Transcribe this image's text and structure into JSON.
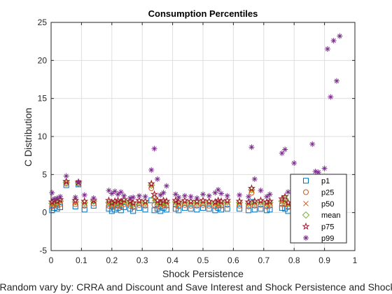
{
  "chart_data": {
    "type": "scatter",
    "title": "Consumption Percentiles",
    "xlabel": "Shock Persistence",
    "ylabel": "C Distribution",
    "caption": "Random vary by: CRRA and Discount and Save Interest and Shock Persistence and Shock",
    "xlim": [
      0,
      1
    ],
    "ylim": [
      -5,
      25
    ],
    "xticks": [
      "0",
      "0.1",
      "0.2",
      "0.3",
      "0.4",
      "0.5",
      "0.6",
      "0.7",
      "0.8",
      "0.9",
      "1"
    ],
    "yticks": [
      "-5",
      "0",
      "5",
      "10",
      "15",
      "20",
      "25"
    ],
    "grid": true,
    "legend_position": "bottom-right",
    "x": [
      0.003,
      0.01,
      0.02,
      0.03,
      0.05,
      0.08,
      0.09,
      0.11,
      0.14,
      0.19,
      0.2,
      0.21,
      0.22,
      0.23,
      0.24,
      0.26,
      0.27,
      0.29,
      0.31,
      0.33,
      0.34,
      0.35,
      0.36,
      0.37,
      0.38,
      0.41,
      0.42,
      0.44,
      0.46,
      0.48,
      0.5,
      0.52,
      0.54,
      0.55,
      0.56,
      0.58,
      0.62,
      0.65,
      0.66,
      0.67,
      0.69,
      0.71,
      0.72,
      0.76,
      0.77,
      0.78,
      0.8,
      0.82,
      0.83,
      0.84,
      0.86,
      0.87,
      0.88,
      0.9,
      0.91,
      0.92,
      0.93,
      0.94,
      0.95
    ],
    "series": [
      {
        "name": "p1",
        "marker": "square",
        "color": "#0072BD",
        "values": [
          0.3,
          0.6,
          0.5,
          0.7,
          3.6,
          0.8,
          3.7,
          0.4,
          0.9,
          0.5,
          0.2,
          0.4,
          0.6,
          0.3,
          0.7,
          0.5,
          0.2,
          0.6,
          0.4,
          1.6,
          0.3,
          0.5,
          0.2,
          0.6,
          0.4,
          0.5,
          0.3,
          0.6,
          0.5,
          0.4,
          0.6,
          0.5,
          0.3,
          0.6,
          0.4,
          0.5,
          0.5,
          0.3,
          1.4,
          0.4,
          0.5,
          0.3,
          0.4,
          0.6,
          0.5,
          0.2,
          0.4,
          0.1,
          0.2,
          0.1,
          0.3,
          0.2,
          0.2,
          0.3,
          0.1,
          0.2,
          0.1,
          0.1,
          0.2
        ]
      },
      {
        "name": "p25",
        "marker": "circle",
        "color": "#D95319",
        "values": [
          0.8,
          1.0,
          0.9,
          1.1,
          3.8,
          1.1,
          3.8,
          0.9,
          1.2,
          0.9,
          0.7,
          0.9,
          1.0,
          0.8,
          1.1,
          0.9,
          0.7,
          1.0,
          0.9,
          3.2,
          1.0,
          1.0,
          0.7,
          1.0,
          0.9,
          1.0,
          0.8,
          1.0,
          0.9,
          0.9,
          1.0,
          0.9,
          0.8,
          1.0,
          0.9,
          1.0,
          0.9,
          0.8,
          2.6,
          0.9,
          1.0,
          0.8,
          0.9,
          1.1,
          1.2,
          0.7,
          0.9,
          0.6,
          0.9,
          0.5,
          0.8,
          0.7,
          0.9,
          0.9,
          0.5,
          0.7,
          0.5,
          0.7,
          0.8
        ]
      },
      {
        "name": "p50",
        "marker": "x",
        "color": "#D95319",
        "values": [
          1.1,
          1.3,
          1.2,
          1.4,
          3.9,
          1.3,
          3.9,
          1.2,
          1.4,
          1.2,
          1.0,
          1.2,
          1.3,
          1.1,
          1.4,
          1.2,
          1.0,
          1.3,
          1.2,
          3.5,
          1.8,
          1.3,
          1.0,
          1.3,
          1.2,
          1.3,
          1.1,
          1.3,
          1.2,
          1.2,
          1.3,
          1.2,
          1.1,
          1.3,
          1.2,
          1.3,
          1.2,
          1.1,
          2.9,
          1.2,
          1.3,
          1.1,
          1.2,
          1.4,
          1.6,
          1.0,
          1.2,
          1.0,
          1.3,
          0.9,
          1.2,
          1.1,
          1.4,
          1.4,
          0.9,
          1.1,
          0.9,
          1.2,
          1.4
        ]
      },
      {
        "name": "mean",
        "marker": "diamond",
        "color": "#77AC30",
        "values": [
          1.2,
          1.4,
          1.3,
          1.5,
          4.0,
          1.4,
          3.9,
          1.3,
          1.5,
          1.3,
          1.1,
          1.3,
          1.4,
          1.2,
          1.5,
          1.3,
          1.1,
          1.4,
          1.3,
          3.6,
          2.0,
          1.4,
          1.1,
          1.4,
          1.3,
          1.4,
          1.2,
          1.4,
          1.3,
          1.3,
          1.4,
          1.3,
          1.2,
          1.4,
          1.3,
          1.4,
          1.3,
          1.2,
          3.0,
          1.3,
          1.4,
          1.2,
          1.3,
          1.5,
          1.8,
          1.2,
          1.4,
          1.2,
          1.6,
          1.1,
          1.5,
          1.4,
          1.7,
          1.9,
          1.4,
          1.8,
          1.7,
          2.1,
          2.5
        ]
      },
      {
        "name": "p75",
        "marker": "pentagram",
        "color": "#A2142F",
        "values": [
          1.4,
          1.6,
          1.5,
          1.7,
          4.1,
          1.6,
          4.0,
          1.5,
          1.6,
          1.6,
          1.3,
          1.5,
          1.6,
          1.4,
          1.7,
          1.5,
          1.3,
          1.6,
          1.5,
          3.8,
          2.4,
          1.6,
          1.3,
          1.6,
          1.5,
          1.6,
          1.4,
          1.6,
          1.5,
          1.5,
          1.6,
          1.5,
          1.4,
          1.6,
          1.5,
          1.6,
          1.5,
          1.4,
          3.2,
          1.5,
          1.6,
          1.4,
          1.5,
          1.8,
          2.1,
          1.3,
          1.7,
          1.5,
          2.0,
          1.3,
          1.9,
          1.7,
          2.1,
          2.4,
          1.6,
          2.3,
          2.0,
          2.6,
          3.0
        ]
      },
      {
        "name": "p99",
        "marker": "asterisk",
        "color": "#7E2F8E",
        "values": [
          2.6,
          1.8,
          1.9,
          2.1,
          4.8,
          2.0,
          4.0,
          2.3,
          1.9,
          2.9,
          2.5,
          2.8,
          2.4,
          2.7,
          2.2,
          1.9,
          2.0,
          2.2,
          2.1,
          5.6,
          8.4,
          4.4,
          2.3,
          2.6,
          3.5,
          2.4,
          2.0,
          2.2,
          2.1,
          1.9,
          2.4,
          2.2,
          2.6,
          3.0,
          2.5,
          2.2,
          2.3,
          2.1,
          8.6,
          4.4,
          2.9,
          2.1,
          2.4,
          7.8,
          8.3,
          2.7,
          6.5,
          3.0,
          4.0,
          3.7,
          9.0,
          5.4,
          5.3,
          5.8,
          21.5,
          15.2,
          22.6,
          17.3,
          23.2
        ]
      }
    ]
  }
}
